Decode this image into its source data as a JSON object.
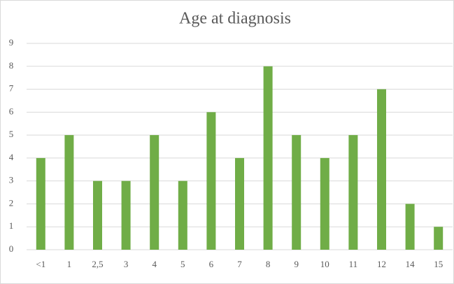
{
  "chart_data": {
    "type": "bar",
    "title": "Age at diagnosis",
    "categories": [
      "<1",
      "1",
      "2,5",
      "3",
      "4",
      "5",
      "6",
      "7",
      "8",
      "9",
      "10",
      "11",
      "12",
      "14",
      "15"
    ],
    "values": [
      4,
      5,
      3,
      3,
      5,
      3,
      6,
      4,
      8,
      5,
      4,
      5,
      7,
      2,
      1
    ],
    "color": "#70ad47",
    "ylim": [
      0,
      9
    ],
    "yticks": [
      0,
      1,
      2,
      3,
      4,
      5,
      6,
      7,
      8,
      9
    ],
    "grid": true
  }
}
